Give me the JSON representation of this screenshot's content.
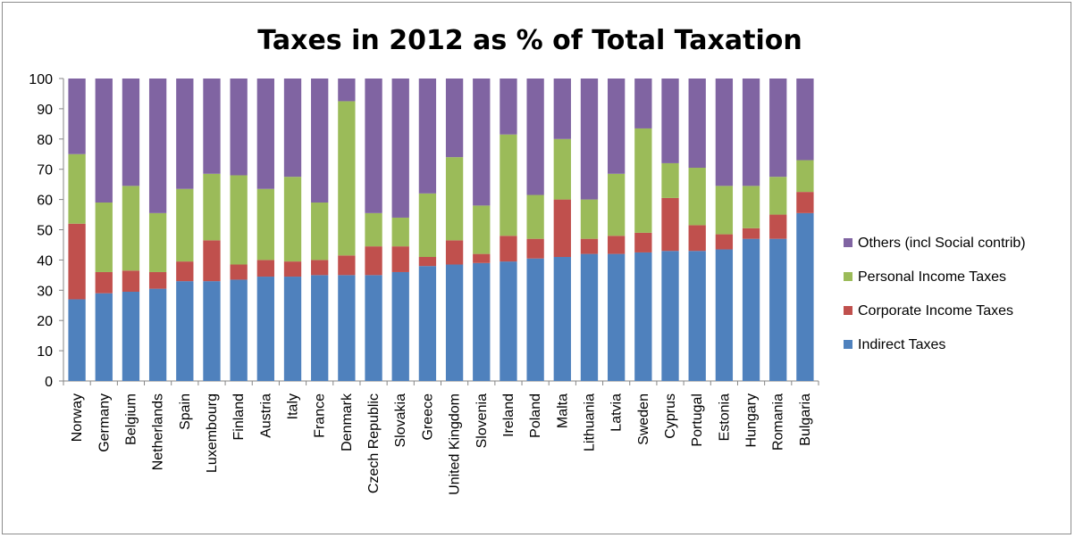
{
  "chart_data": {
    "type": "bar",
    "stacked": true,
    "title": "Taxes in 2012 as % of Total Taxation",
    "xlabel": "",
    "ylabel": "",
    "ylim": [
      0,
      100
    ],
    "yticks": [
      "0",
      "10",
      "20",
      "30",
      "40",
      "50",
      "60",
      "70",
      "80",
      "90",
      "100"
    ],
    "grid": false,
    "legend_position": "right",
    "categories": [
      "Norway",
      "Germany",
      "Belgium",
      "Netherlands",
      "Spain",
      "Luxembourg",
      "Finland",
      "Austria",
      "Italy",
      "France",
      "Denmark",
      "Czech Republic",
      "Slovakia",
      "Greece",
      "United Kingdom",
      "Slovenia",
      "Ireland",
      "Poland",
      "Malta",
      "Lithuania",
      "Latvia",
      "Sweden",
      "Cyprus",
      "Portugal",
      "Estonia",
      "Hungary",
      "Romania",
      "Bulgaria"
    ],
    "series": [
      {
        "name": "Indirect Taxes",
        "color": "#4f81bd",
        "values": [
          27,
          29,
          29.5,
          30.5,
          33,
          33,
          33.5,
          34.5,
          34.5,
          35,
          35,
          35,
          36,
          38,
          38.5,
          39,
          39.5,
          40.5,
          41,
          42,
          42,
          42.5,
          43,
          43,
          43.5,
          47,
          47,
          55.5
        ]
      },
      {
        "name": "Corporate Income Taxes",
        "color": "#c0504d",
        "values": [
          25,
          7,
          7,
          5.5,
          6.5,
          13.5,
          5,
          5.5,
          5,
          5,
          6.5,
          9.5,
          8.5,
          3,
          8,
          3,
          8.5,
          6.5,
          19,
          5,
          6,
          6.5,
          17.5,
          8.5,
          5,
          3.5,
          8,
          7
        ]
      },
      {
        "name": "Personal Income Taxes",
        "color": "#9bbb59",
        "values": [
          23,
          23,
          28,
          19.5,
          24,
          22,
          29.5,
          23.5,
          28,
          19,
          51,
          11,
          9.5,
          21,
          27.5,
          16,
          33.5,
          14.5,
          20,
          13,
          20.5,
          34.5,
          11.5,
          19,
          16,
          14,
          12.5,
          10.5
        ]
      },
      {
        "name": "Others (incl Social contrib)",
        "color": "#8064a2",
        "values": [
          25,
          41,
          35.5,
          44.5,
          36.5,
          31.5,
          32,
          36.5,
          32.5,
          41,
          7.5,
          44.5,
          46,
          38,
          26,
          42,
          18.5,
          38.5,
          20,
          40,
          31.5,
          16.5,
          28,
          29.5,
          35.5,
          35.5,
          32.5,
          27
        ]
      }
    ],
    "legend_order": [
      "Others (incl Social contrib)",
      "Personal Income Taxes",
      "Corporate Income Taxes",
      "Indirect Taxes"
    ]
  }
}
